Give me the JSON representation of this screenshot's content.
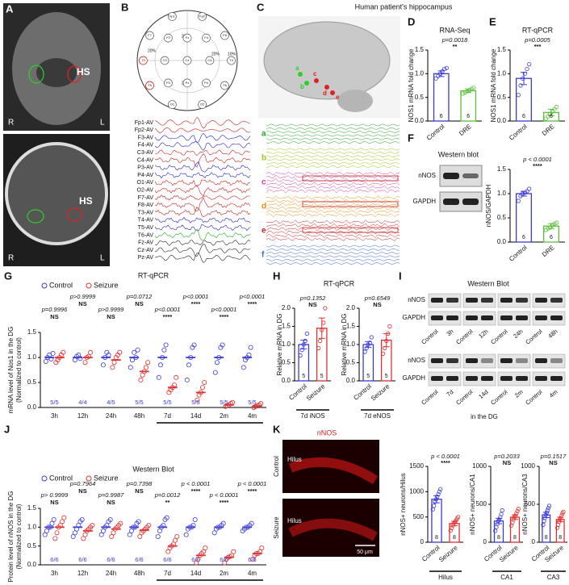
{
  "panels": [
    "A",
    "B",
    "C",
    "D",
    "E",
    "F",
    "G",
    "H",
    "I",
    "J",
    "K"
  ],
  "panel_a": {
    "labels": [
      "HS",
      "R",
      "L",
      "HS",
      "R",
      "L"
    ]
  },
  "panel_b": {
    "electrodes": [
      "Fp1",
      "Fp2",
      "F7",
      "F3",
      "Fz",
      "F4",
      "F8",
      "T3",
      "C3",
      "Cz",
      "C4",
      "T4",
      "T5",
      "P3",
      "Pz",
      "P4",
      "T6",
      "O1",
      "O2"
    ],
    "percents": [
      "20%",
      "20%",
      "20%",
      "10%",
      "20%"
    ],
    "channels": [
      "Fp1-AV",
      "Fp2-AV",
      "F3-AV",
      "F4-AV",
      "C3-AV",
      "C4-AV",
      "P3-AV",
      "P4-AV",
      "O1-AV",
      "O2-AV",
      "F7-AV",
      "F8-AV",
      "T3-AV",
      "T4-AV",
      "T5-AV",
      "T6-AV",
      "Fz-AV",
      "Cz-AV",
      "Pz-AV"
    ]
  },
  "panel_c": {
    "title": "Human patient's hippocampus",
    "markers": [
      "a",
      "b",
      "c",
      "d",
      "e"
    ],
    "traces": [
      "a",
      "b",
      "c",
      "d",
      "e",
      "f"
    ]
  },
  "panel_f": {
    "title": "Western blot",
    "bands": [
      "nNOS",
      "GAPDH"
    ]
  },
  "panel_i": {
    "title": "Western Blot",
    "bands": [
      "nNOS",
      "GAPDH",
      "nNOS",
      "GAPDH"
    ],
    "lanes": [
      [
        "Control",
        "3h",
        "Control",
        "12h",
        "Control",
        "24h",
        "Control",
        "48h"
      ],
      [
        "Control",
        "7d",
        "Control",
        "14d",
        "Control",
        "2m",
        "Control",
        "4m"
      ]
    ],
    "caption": "in the DG"
  },
  "panel_k": {
    "stain": "nNOS",
    "conditions": [
      "Control",
      "Seizure"
    ],
    "regions": [
      "Hilus",
      "Hilus"
    ],
    "scale_bar": "50 μm"
  },
  "chart_data": [
    {
      "type": "dotbar",
      "title": "RNA-Seq",
      "ylabel": "NOS1 mRNA fold change",
      "categories": [
        "Control",
        "DRE"
      ],
      "values": [
        1.0,
        0.64
      ],
      "errors": [
        0.06,
        0.04
      ],
      "points": [
        [
          0.9,
          0.95,
          1.0,
          1.05,
          1.1,
          1.12
        ],
        [
          0.58,
          0.6,
          0.63,
          0.65,
          0.68,
          0.7
        ]
      ],
      "n_labels": [
        "6",
        "6"
      ],
      "p_label": "p=0.0018",
      "sig_label": "**",
      "colors": [
        "#3b3bd6",
        "#5bbf3a"
      ],
      "ylim": [
        0,
        1.5
      ],
      "yticks": [
        {
          "value": 0,
          "label": "0.0"
        },
        0.5,
        {
          "value": 1,
          "label": "1.0"
        },
        1.5
      ]
    },
    {
      "type": "dotbar",
      "title": "RT-qPCR",
      "ylabel": "NOS1 mRNA fold change",
      "categories": [
        "Control",
        "DRE"
      ],
      "values": [
        0.9,
        0.18
      ],
      "errors": [
        0.13,
        0.07
      ],
      "points": [
        [
          0.55,
          0.75,
          0.9,
          1.0,
          1.1,
          1.2
        ],
        [
          0.05,
          0.1,
          0.15,
          0.2,
          0.25,
          0.3
        ]
      ],
      "n_labels": [
        "6",
        "6"
      ],
      "p_label": "p=0.0005",
      "sig_label": "***",
      "colors": [
        "#3b3bd6",
        "#5bbf3a"
      ],
      "ylim": [
        0,
        1.5
      ],
      "yticks": [
        {
          "value": 0,
          "label": "0.0"
        },
        0.5,
        {
          "value": 1,
          "label": "1.0"
        },
        1.5
      ]
    },
    {
      "type": "dotbar",
      "ylabel": "nNOS/GAPDH",
      "categories": [
        "Control",
        "DRE"
      ],
      "values": [
        1.0,
        0.33
      ],
      "errors": [
        0.05,
        0.05
      ],
      "points": [
        [
          0.85,
          0.95,
          1.0,
          1.02,
          1.05,
          1.1
        ],
        [
          0.25,
          0.28,
          0.3,
          0.35,
          0.38,
          0.4
        ]
      ],
      "n_labels": [
        "6",
        "6"
      ],
      "p_label": "p < 0.0001",
      "sig_label": "****",
      "colors": [
        "#3b3bd6",
        "#5bbf3a"
      ],
      "ylim": [
        0,
        1.5
      ],
      "yticks": [
        {
          "value": 0,
          "label": "0.0"
        },
        0.5,
        {
          "value": 1,
          "label": "1.0"
        },
        1.5
      ]
    },
    {
      "type": "dotline",
      "title": "RT-qPCR",
      "ylabel": [
        "mRNA level of Nos1 in the DG",
        "(Normalized to control)"
      ],
      "categories": [
        "3h",
        "12h",
        "24h",
        "48h",
        "7d",
        "14d",
        "2m",
        "4m"
      ],
      "series": [
        {
          "name": "Control",
          "color": "#3b3bd6",
          "values": [
            1.0,
            1.0,
            1.0,
            1.0,
            1.0,
            1.0,
            1.0,
            1.0
          ],
          "points": [
            [
              0.92,
              1.0,
              1.05,
              0.97,
              1.08
            ],
            [
              0.95,
              1.02,
              1.05,
              0.98
            ],
            [
              0.85,
              1.0,
              1.1,
              1.05
            ],
            [
              0.8,
              0.95,
              1.1,
              1.0,
              1.15
            ],
            [
              0.6,
              0.85,
              1.0,
              1.15,
              1.25
            ],
            [
              0.55,
              0.85,
              1.0,
              1.2,
              1.25
            ],
            [
              0.7,
              0.9,
              1.0,
              1.2,
              1.25
            ],
            [
              0.8,
              0.95,
              1.0,
              1.05,
              1.2
            ]
          ]
        },
        {
          "name": "Seizure",
          "color": "#e03030",
          "values": [
            1.0,
            1.0,
            0.95,
            0.72,
            0.4,
            0.3,
            0.05,
            0.03
          ],
          "points": [
            [
              0.9,
              0.95,
              1.0,
              1.05,
              1.1
            ],
            [
              0.9,
              1.0,
              1.02,
              1.1
            ],
            [
              0.8,
              0.9,
              1.0,
              1.05,
              1.1
            ],
            [
              0.55,
              0.65,
              0.72,
              0.8,
              0.9
            ],
            [
              0.3,
              0.35,
              0.4,
              0.45,
              0.6
            ],
            [
              0.15,
              0.25,
              0.3,
              0.4,
              0.5
            ],
            [
              0.02,
              0.04,
              0.05,
              0.08,
              0.1
            ],
            [
              0.0,
              0.02,
              0.03,
              0.05,
              0.08
            ]
          ]
        }
      ],
      "p_labels": [
        "p=0.9996",
        "p>0.9999",
        "p>0.9999",
        "p=0.0712",
        "p<0.0001",
        "p<0.0001",
        "p<0.0001",
        "p<0.0001"
      ],
      "sig_labels": [
        "NS",
        "NS",
        "NS",
        "NS",
        "****",
        "****",
        "****",
        "****"
      ],
      "n_labels": [
        "5/5",
        "4/4",
        "4/5",
        "5/5",
        "5/5",
        "5/5",
        "5/5",
        "5/5"
      ],
      "ylim": [
        0,
        1.5
      ],
      "yticks": [
        {
          "value": 0,
          "label": "0.0"
        },
        0.5,
        {
          "value": 1,
          "label": "1.0"
        },
        1.5
      ]
    },
    {
      "type": "dotbar",
      "title": "RT-qPCR",
      "ylabel": "Relative mRNA in DG",
      "categories": [
        "Control",
        "Seizure"
      ],
      "values": [
        1.0,
        1.45
      ],
      "errors": [
        0.12,
        0.28
      ],
      "points": [
        [
          0.7,
          0.85,
          1.0,
          1.1,
          1.3
        ],
        [
          0.9,
          1.1,
          1.4,
          1.6,
          2.0
        ]
      ],
      "n_labels": [
        "5",
        "5"
      ],
      "p_label": "p=0.1352",
      "sig_label": "NS",
      "xlabel": "7d iNOS",
      "colors": [
        "#3b3bd6",
        "#e03030"
      ],
      "ylim": [
        0,
        2
      ],
      "yticks": [
        {
          "value": 0,
          "label": "0.0"
        },
        0.5,
        {
          "value": 1,
          "label": "1.0"
        },
        1.5,
        {
          "value": 2,
          "label": "2.0"
        }
      ]
    },
    {
      "type": "dotbar",
      "ylabel": "Relative mRNA in DG",
      "categories": [
        "Control",
        "Seizure"
      ],
      "values": [
        1.0,
        1.12
      ],
      "errors": [
        0.08,
        0.18
      ],
      "points": [
        [
          0.8,
          0.9,
          1.0,
          1.05,
          1.2
        ],
        [
          0.75,
          0.9,
          1.1,
          1.3,
          1.5
        ]
      ],
      "n_labels": [
        "5",
        "5"
      ],
      "p_label": "p=0.6549",
      "sig_label": "NS",
      "xlabel": "7d eNOS",
      "colors": [
        "#3b3bd6",
        "#e03030"
      ],
      "ylim": [
        0,
        2
      ],
      "yticks": [
        {
          "value": 0,
          "label": "0.0"
        },
        0.5,
        {
          "value": 1,
          "label": "1.0"
        },
        1.5,
        {
          "value": 2,
          "label": "2.0"
        }
      ]
    },
    {
      "type": "dotline",
      "title": "Western Blot",
      "ylabel": [
        "Protein level of nNOS in the DG",
        "(Normalized to control)"
      ],
      "categories": [
        "3h",
        "12h",
        "24h",
        "48h",
        "7d",
        "14d",
        "2m",
        "4m"
      ],
      "series": [
        {
          "name": "Control",
          "color": "#3b3bd6",
          "values": [
            1.0,
            1.0,
            1.0,
            1.0,
            1.0,
            1.0,
            1.0,
            1.0
          ],
          "points": [
            [
              0.8,
              0.9,
              1.0,
              1.0,
              1.1,
              1.2
            ],
            [
              0.75,
              0.85,
              0.95,
              1.05,
              1.15,
              1.2
            ],
            [
              0.8,
              0.9,
              1.0,
              1.05,
              1.15,
              1.2
            ],
            [
              0.8,
              0.9,
              1.0,
              1.0,
              1.1,
              1.15
            ],
            [
              0.75,
              0.9,
              1.0,
              1.05,
              1.2,
              1.25
            ],
            [
              0.8,
              0.95,
              1.0,
              1.0,
              1.05,
              1.2
            ],
            [
              0.85,
              0.95,
              1.0,
              1.0,
              1.05,
              1.1
            ],
            [
              0.9,
              0.95,
              1.0,
              1.0,
              1.05,
              1.1
            ]
          ]
        },
        {
          "name": "Seizure",
          "color": "#e03030",
          "values": [
            1.0,
            0.9,
            0.95,
            0.92,
            0.5,
            0.25,
            0.2,
            0.3
          ],
          "points": [
            [
              0.7,
              0.85,
              1.0,
              1.05,
              1.15,
              1.25
            ],
            [
              0.7,
              0.8,
              0.9,
              0.95,
              1.0,
              1.05
            ],
            [
              0.75,
              0.85,
              0.95,
              1.0,
              1.05,
              1.1
            ],
            [
              0.75,
              0.85,
              0.9,
              0.95,
              1.0,
              1.05
            ],
            [
              0.35,
              0.45,
              0.5,
              0.55,
              0.65,
              0.75
            ],
            [
              0.05,
              0.15,
              0.25,
              0.3,
              0.35,
              0.45
            ],
            [
              0.05,
              0.15,
              0.2,
              0.22,
              0.25,
              0.35
            ],
            [
              0.15,
              0.25,
              0.3,
              0.3,
              0.35,
              0.45
            ]
          ]
        }
      ],
      "p_labels": [
        "p> 0.9999",
        "p=0.7964",
        "p=0.9987",
        "p=0.7398",
        "p=0.0012",
        "p < 0.0001",
        "p < 0.0001",
        "p < 0.0001"
      ],
      "sig_labels": [
        "NS",
        "NS",
        "NS",
        "NS",
        "**",
        "****",
        "****",
        "****"
      ],
      "n_labels": [
        "6/6",
        "6/6",
        "6/6",
        "6/6",
        "6/6",
        "6/6",
        "6/6",
        "6/6"
      ],
      "ylim": [
        0,
        1.5
      ],
      "yticks": [
        {
          "value": 0,
          "label": "0.0"
        },
        0.5,
        {
          "value": 1,
          "label": "1.0"
        },
        1.5
      ]
    },
    {
      "type": "dotbar",
      "ylabel": "nNOS+ neurons/Hilus",
      "categories": [
        "Control",
        "Seizure"
      ],
      "values": [
        850,
        370
      ],
      "errors": [
        70,
        45
      ],
      "points": [
        [
          650,
          720,
          800,
          850,
          900,
          950,
          1000,
          1050
        ],
        [
          230,
          280,
          330,
          370,
          400,
          430,
          470,
          500
        ]
      ],
      "n_labels": [
        "8",
        "8"
      ],
      "p_label": "p < 0.0001",
      "sig_label": "****",
      "xlabel": "Hilus",
      "colors": [
        "#3b3bd6",
        "#e03030"
      ],
      "ylim": [
        0,
        1500
      ],
      "yticks": [
        0,
        500,
        1000,
        1500
      ]
    },
    {
      "type": "dotbar",
      "ylabel": "nNOS+ neurons/CA1",
      "categories": [
        "Control",
        "Seizure"
      ],
      "values": [
        280,
        330
      ],
      "errors": [
        35,
        30
      ],
      "points": [
        [
          150,
          200,
          240,
          280,
          300,
          330,
          370,
          420
        ],
        [
          220,
          260,
          300,
          330,
          350,
          380,
          410,
          440
        ]
      ],
      "n_labels": [
        "8",
        "8"
      ],
      "p_label": "p=0.2033",
      "sig_label": "NS",
      "xlabel": "CA1",
      "colors": [
        "#3b3bd6",
        "#e03030"
      ],
      "ylim": [
        0,
        1000
      ],
      "yticks": [
        0,
        500,
        1000
      ]
    },
    {
      "type": "dotbar",
      "ylabel": "nNOS+ neurons/CA3",
      "categories": [
        "Control",
        "Seizure"
      ],
      "values": [
        360,
        300
      ],
      "errors": [
        35,
        30
      ],
      "points": [
        [
          230,
          280,
          320,
          360,
          390,
          420,
          450,
          480
        ],
        [
          190,
          230,
          270,
          300,
          320,
          350,
          380,
          400
        ]
      ],
      "n_labels": [
        "8",
        "8"
      ],
      "p_label": "p=0.1517",
      "sig_label": "NS",
      "xlabel": "CA3",
      "colors": [
        "#3b3bd6",
        "#e03030"
      ],
      "ylim": [
        0,
        1000
      ],
      "yticks": [
        0,
        500,
        1000
      ]
    }
  ]
}
